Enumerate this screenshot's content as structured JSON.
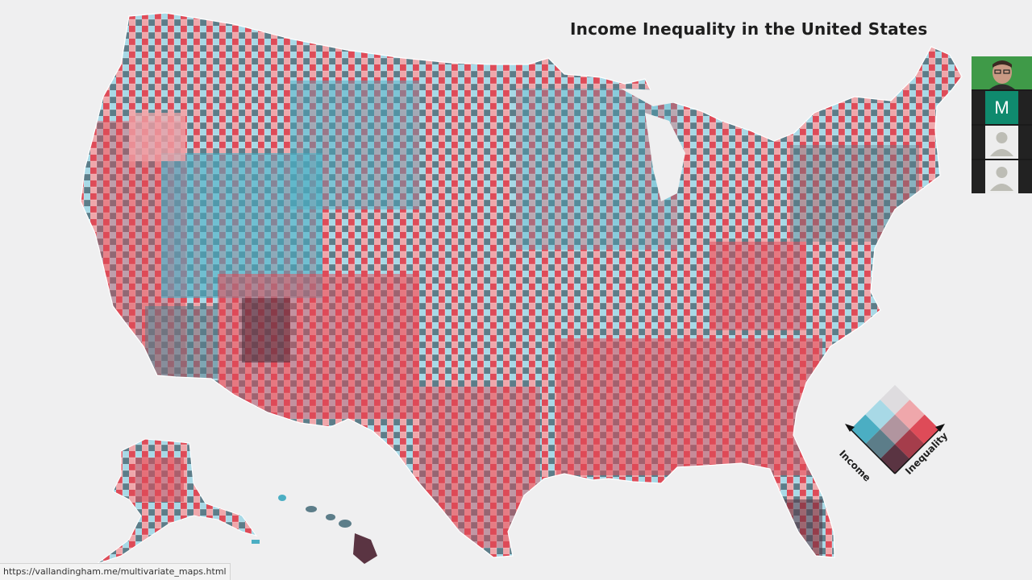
{
  "title": "Income Inequality in the United States",
  "legend": {
    "income_label": "Income",
    "inequality_label": "Inequality",
    "colors": [
      [
        "#dedcdf",
        "#efa7ab",
        "#de4b58"
      ],
      [
        "#a8d9e6",
        "#b1959f",
        "#a53d4b"
      ],
      [
        "#4baec3",
        "#5c7d89",
        "#5a3442"
      ]
    ]
  },
  "participants": [
    {
      "type": "camera",
      "icon": "participant-video-icon"
    },
    {
      "type": "initial",
      "initial": "M"
    },
    {
      "type": "placeholder",
      "icon": "user-silhouette-icon"
    },
    {
      "type": "placeholder",
      "icon": "user-silhouette-icon"
    }
  ],
  "status_url": "https://vallandingham.me/multivariate_maps.html",
  "palette": {
    "background": "#efeff0",
    "border": "#ffffff"
  }
}
